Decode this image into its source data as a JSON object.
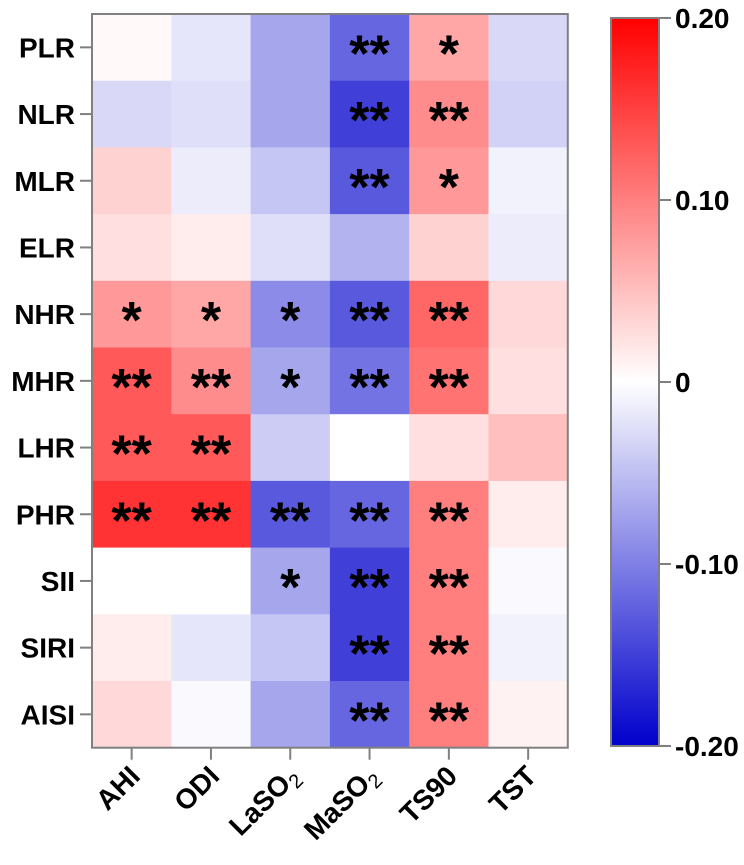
{
  "chart_data": {
    "type": "heatmap",
    "rows": [
      "PLR",
      "NLR",
      "MLR",
      "ELR",
      "NHR",
      "MHR",
      "LHR",
      "PHR",
      "SII",
      "SIRI",
      "AISI"
    ],
    "columns": [
      {
        "base": "AHI",
        "sub": ""
      },
      {
        "base": "ODI",
        "sub": ""
      },
      {
        "base": "LaSO",
        "sub": "2"
      },
      {
        "base": "MaSO",
        "sub": "2"
      },
      {
        "base": "TS90",
        "sub": ""
      },
      {
        "base": "TST",
        "sub": ""
      }
    ],
    "values": [
      [
        0.005,
        -0.02,
        -0.07,
        -0.12,
        0.07,
        -0.03
      ],
      [
        -0.03,
        -0.025,
        -0.07,
        -0.15,
        0.09,
        -0.035
      ],
      [
        0.035,
        -0.015,
        -0.045,
        -0.13,
        0.08,
        -0.01
      ],
      [
        0.025,
        0.015,
        -0.025,
        -0.06,
        0.035,
        -0.015
      ],
      [
        0.08,
        0.07,
        -0.09,
        -0.13,
        0.12,
        0.03
      ],
      [
        0.13,
        0.09,
        -0.07,
        -0.11,
        0.11,
        0.025
      ],
      [
        0.13,
        0.13,
        -0.04,
        0.0,
        0.025,
        0.05
      ],
      [
        0.16,
        0.16,
        -0.13,
        -0.12,
        0.1,
        0.015
      ],
      [
        0.0,
        0.0,
        -0.07,
        -0.15,
        0.1,
        -0.005
      ],
      [
        0.015,
        -0.02,
        -0.045,
        -0.15,
        0.1,
        -0.01
      ],
      [
        0.03,
        -0.005,
        -0.07,
        -0.12,
        0.1,
        0.01
      ]
    ],
    "significance": [
      [
        "",
        "",
        "",
        "**",
        "*",
        ""
      ],
      [
        "",
        "",
        "",
        "**",
        "**",
        ""
      ],
      [
        "",
        "",
        "",
        "**",
        "*",
        ""
      ],
      [
        "",
        "",
        "",
        "",
        "",
        ""
      ],
      [
        "*",
        "*",
        "*",
        "**",
        "**",
        ""
      ],
      [
        "**",
        "**",
        "*",
        "**",
        "**",
        ""
      ],
      [
        "**",
        "**",
        "",
        "",
        "",
        ""
      ],
      [
        "**",
        "**",
        "**",
        "**",
        "**",
        ""
      ],
      [
        "",
        "",
        "*",
        "**",
        "**",
        ""
      ],
      [
        "",
        "",
        "",
        "**",
        "**",
        ""
      ],
      [
        "",
        "",
        "",
        "**",
        "**",
        ""
      ]
    ],
    "colorbar": {
      "min": -0.2,
      "max": 0.2,
      "ticks": [
        0.2,
        0.1,
        0,
        -0.1,
        -0.2
      ],
      "tick_labels": [
        "0.20",
        "0.10",
        "0",
        "-0.10",
        "-0.20"
      ]
    },
    "colors": {
      "low": "#0000cc",
      "mid": "#ffffff",
      "high": "#ff0000",
      "frame": "#808080"
    }
  }
}
